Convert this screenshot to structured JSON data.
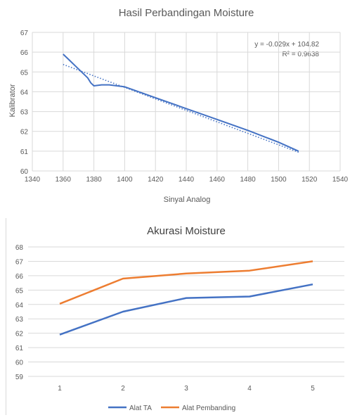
{
  "chart_data": [
    {
      "type": "line",
      "title": "Hasil Perbandingan Moisture",
      "xlabel": "Sinyal Analog",
      "ylabel": "Kalibrator",
      "xlim": [
        1340,
        1540
      ],
      "ylim": [
        60,
        67
      ],
      "xticks": [
        "1340",
        "1360",
        "1380",
        "1400",
        "1420",
        "1440",
        "1460",
        "1480",
        "1500",
        "1520",
        "1540"
      ],
      "yticks": [
        "60",
        "61",
        "62",
        "63",
        "64",
        "65",
        "66",
        "67"
      ],
      "grid": true,
      "series": [
        {
          "color": "#4472c4",
          "x": [
            1360,
            1364,
            1368,
            1372,
            1376,
            1378,
            1380,
            1385,
            1390,
            1395,
            1400,
            1420,
            1440,
            1460,
            1480,
            1500,
            1513
          ],
          "y": [
            65.9,
            65.6,
            65.3,
            65.0,
            64.7,
            64.45,
            64.3,
            64.35,
            64.35,
            64.3,
            64.25,
            63.7,
            63.15,
            62.6,
            62.05,
            61.45,
            61.0
          ]
        }
      ],
      "trendline": {
        "equation": "y = -0.029x + 104.82",
        "r2": "R² = 0.9638",
        "slope": -0.029,
        "intercept": 104.82,
        "x_range": [
          1360,
          1513
        ],
        "color": "#4472c4",
        "style": "dotted"
      }
    },
    {
      "type": "line",
      "title": "Akurasi Moisture",
      "categories": [
        "1",
        "2",
        "3",
        "4",
        "5"
      ],
      "ylim": [
        59,
        68
      ],
      "yticks": [
        "59",
        "60",
        "61",
        "62",
        "63",
        "64",
        "65",
        "66",
        "67",
        "68"
      ],
      "grid": true,
      "legend_position": "bottom",
      "series": [
        {
          "name": "Alat TA",
          "color": "#4472c4",
          "values": [
            61.9,
            63.5,
            64.45,
            64.55,
            65.4
          ]
        },
        {
          "name": "Alat Pembanding",
          "color": "#ed7d31",
          "values": [
            64.05,
            65.8,
            66.15,
            66.35,
            67.0
          ]
        }
      ]
    }
  ]
}
